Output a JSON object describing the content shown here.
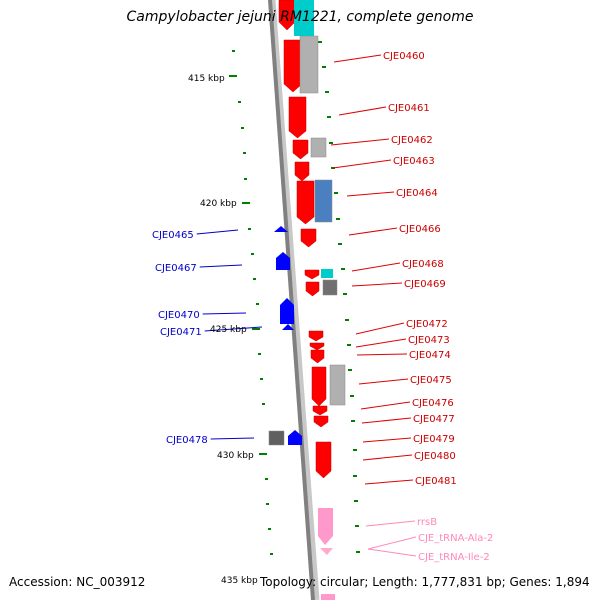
{
  "title": "Campylobacter jejuni RM1221, complete genome",
  "footer": {
    "accession": "Accession: NC_003912",
    "stats": "Topology: circular; Length: 1,777,831 bp; Genes: 1,894"
  },
  "scale_labels": [
    "415 kbp",
    "420 kbp",
    "425 kbp",
    "430 kbp",
    "435 kbp"
  ],
  "colors": {
    "forward_gene": "#ff0000",
    "reverse_gene": "#0000ff",
    "rrna": "#ff99cc",
    "trna": "#ffaacc",
    "backbone": "#808080",
    "tick": "#008000",
    "cds_gray": "#b0b0b0",
    "cds_blue": "#4a80c0",
    "cds_cyan": "#00cccc"
  },
  "labels_right": [
    "CJE0460",
    "CJE0461",
    "CJE0462",
    "CJE0463",
    "CJE0464",
    "CJE0466",
    "CJE0468",
    "CJE0469",
    "CJE0472",
    "CJE0473",
    "CJE0474",
    "CJE0475",
    "CJE0476",
    "CJE0477",
    "CJE0479",
    "CJE0480",
    "CJE0481"
  ],
  "labels_left": [
    "CJE0465",
    "CJE0467",
    "CJE0470",
    "CJE0471",
    "CJE0478"
  ],
  "labels_rna": [
    "rrsB",
    "CJE_tRNA-Ala-2",
    "CJE_tRNA-Ile-2"
  ]
}
